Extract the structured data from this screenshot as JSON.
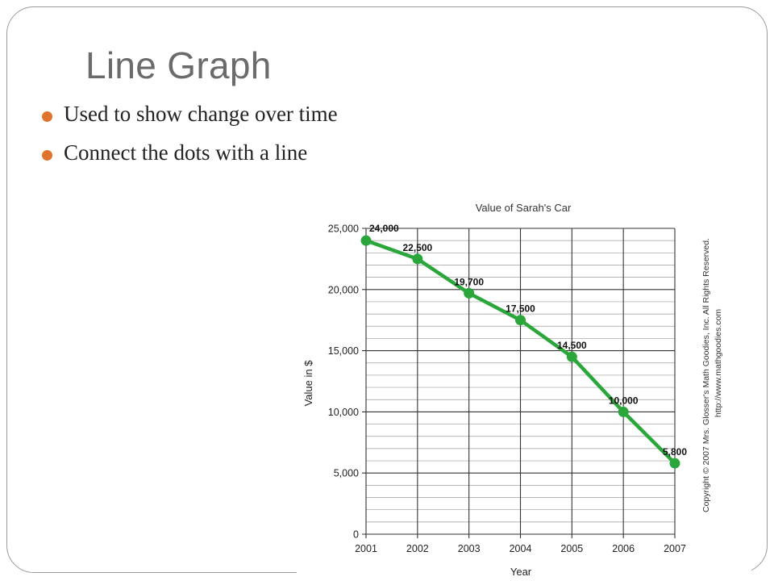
{
  "slide": {
    "title": "Line Graph",
    "bullets": [
      "Used to show change over time",
      "Connect the dots with a line"
    ]
  },
  "colors": {
    "title": "#6b6b6b",
    "bullet_dot": "#e0742c",
    "line": "#2aa63a",
    "grid_major": "#333333",
    "grid_minor": "#9c9c9c"
  },
  "chart_data": {
    "type": "line",
    "title": "Value of Sarah's Car",
    "xlabel": "Year",
    "ylabel": "Value in $",
    "categories": [
      "2001",
      "2002",
      "2003",
      "2004",
      "2005",
      "2006",
      "2007"
    ],
    "values": [
      24000,
      22500,
      19700,
      17500,
      14500,
      10000,
      5800
    ],
    "data_labels": [
      "24,000",
      "22,500",
      "19,700",
      "17,500",
      "14,500",
      "10,000",
      "5,800"
    ],
    "ylim": [
      0,
      25000
    ],
    "y_ticks": [
      0,
      5000,
      10000,
      15000,
      20000,
      25000
    ],
    "y_tick_labels": [
      "0",
      "5,000",
      "10,000",
      "15,000",
      "20,000",
      "25,000"
    ],
    "minor_y_step": 1000,
    "grid": true,
    "copyright": "Copyright © 2007 Mrs. Glosser's Math Goodies, Inc. All Rights Reserved.",
    "url": "http://www.mathgoodies.com"
  }
}
